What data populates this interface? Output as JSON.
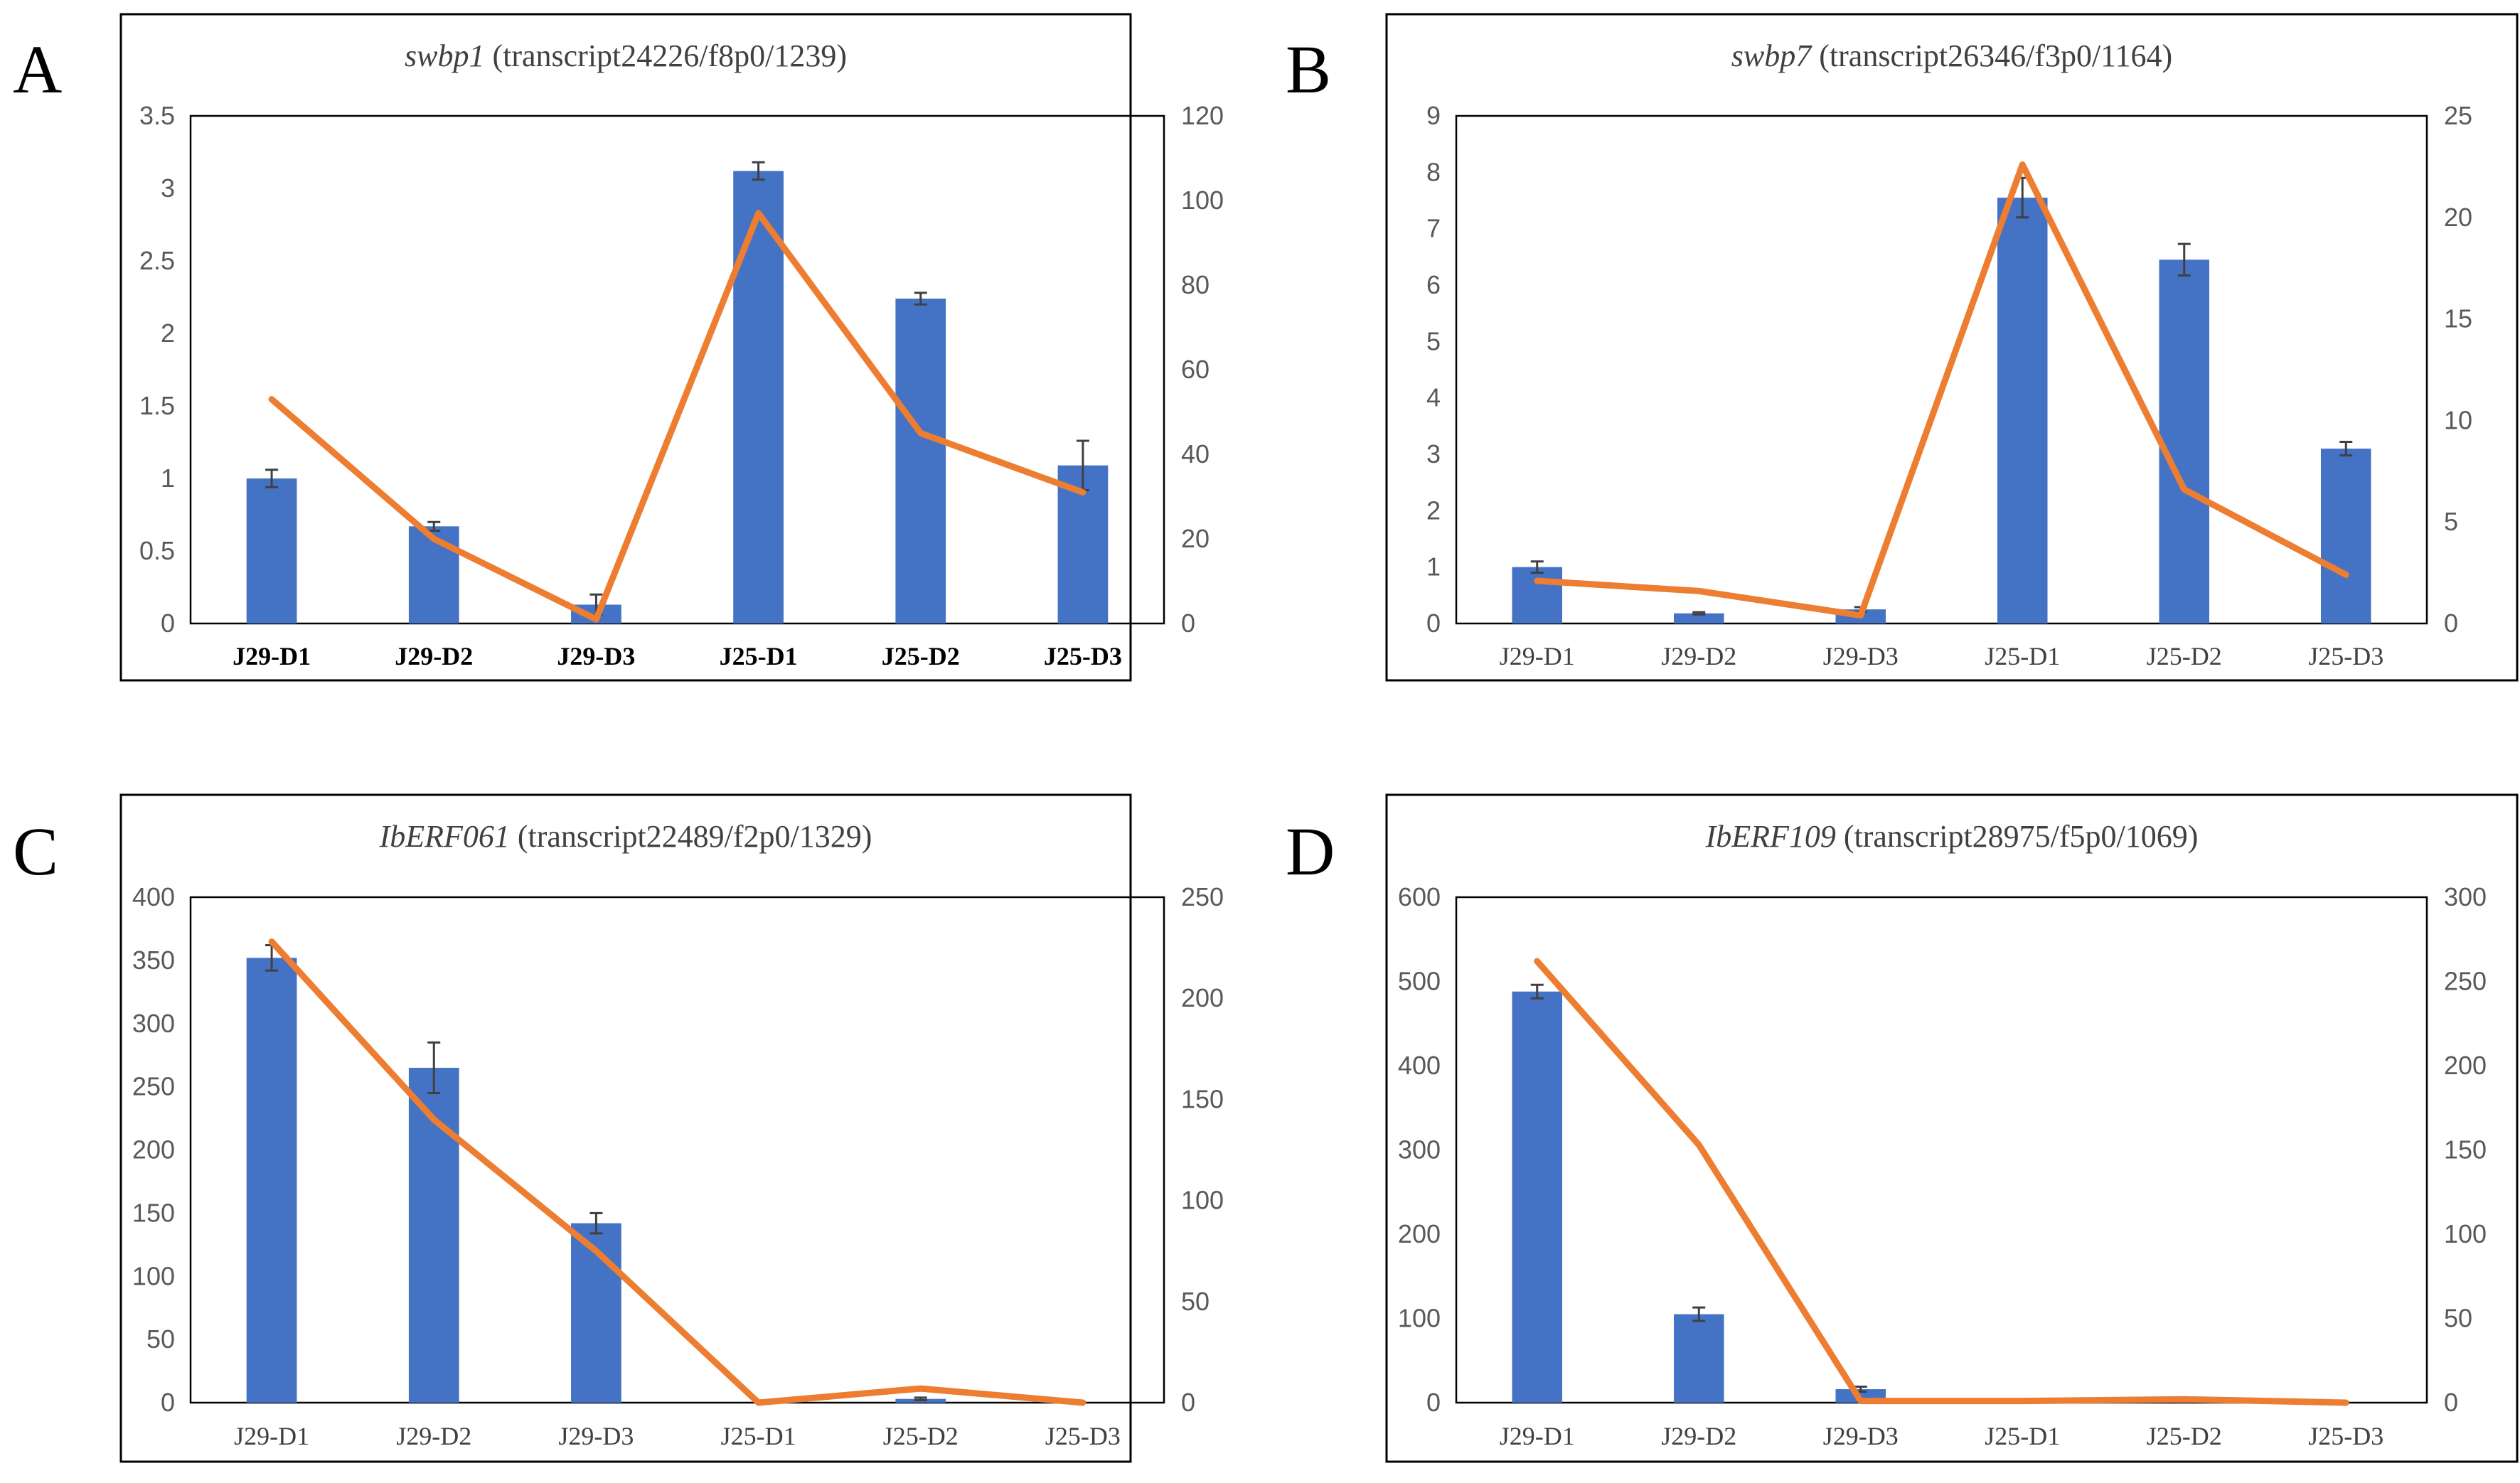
{
  "colors": {
    "bar": "#4472C4",
    "line": "#ED7D31",
    "frame": "#000000",
    "text": "#404040",
    "tick": "#595959"
  },
  "chart_data": [
    {
      "panel": "A",
      "type": "bar+line",
      "title_gene": "swbp1",
      "title_rest": " (transcript24226/f8p0/1239)",
      "categories": [
        "J29-D1",
        "J29-D2",
        "J29-D3",
        "J25-D1",
        "J25-D2",
        "J25-D3"
      ],
      "category_bold": true,
      "ylim_left": [
        0,
        3.5
      ],
      "yticks_left": [
        0,
        0.5,
        1,
        1.5,
        2,
        2.5,
        3,
        3.5
      ],
      "ylim_right": [
        0,
        120
      ],
      "yticks_right": [
        0,
        20,
        40,
        60,
        80,
        100,
        120
      ],
      "series": [
        {
          "name": "bar",
          "axis": "left",
          "values": [
            1.0,
            0.67,
            0.13,
            3.12,
            2.24,
            1.09
          ],
          "errors": [
            0.06,
            0.03,
            0.07,
            0.06,
            0.04,
            0.17
          ]
        },
        {
          "name": "line",
          "axis": "right",
          "values": [
            53,
            20,
            1,
            97,
            45,
            31
          ]
        }
      ]
    },
    {
      "panel": "B",
      "type": "bar+line",
      "title_gene": "swbp7",
      "title_rest": " (transcript26346/f3p0/1164)",
      "categories": [
        "J29-D1",
        "J29-D2",
        "J29-D3",
        "J25-D1",
        "J25-D2",
        "J25-D3"
      ],
      "category_bold": false,
      "ylim_left": [
        0,
        9
      ],
      "yticks_left": [
        0,
        1,
        2,
        3,
        4,
        5,
        6,
        7,
        8,
        9
      ],
      "ylim_right": [
        0,
        25
      ],
      "yticks_right": [
        0,
        5,
        10,
        15,
        20,
        25
      ],
      "series": [
        {
          "name": "bar",
          "axis": "left",
          "values": [
            1.0,
            0.18,
            0.25,
            7.55,
            6.45,
            3.1
          ],
          "errors": [
            0.1,
            0.02,
            0.04,
            0.35,
            0.28,
            0.12
          ]
        },
        {
          "name": "line",
          "axis": "right",
          "values": [
            2.1,
            1.6,
            0.4,
            22.6,
            6.6,
            2.4
          ]
        }
      ]
    },
    {
      "panel": "C",
      "type": "bar+line",
      "title_gene": "IbERF061",
      "title_rest": " (transcript22489/f2p0/1329)",
      "categories": [
        "J29-D1",
        "J29-D2",
        "J29-D3",
        "J25-D1",
        "J25-D2",
        "J25-D3"
      ],
      "category_bold": false,
      "ylim_left": [
        0,
        400
      ],
      "yticks_left": [
        0,
        50,
        100,
        150,
        200,
        250,
        300,
        350,
        400
      ],
      "ylim_right": [
        0,
        250
      ],
      "yticks_right": [
        0,
        50,
        100,
        150,
        200,
        250
      ],
      "series": [
        {
          "name": "bar",
          "axis": "left",
          "values": [
            352,
            265,
            142,
            0,
            3,
            0
          ],
          "errors": [
            10,
            20,
            8,
            0,
            1,
            0
          ]
        },
        {
          "name": "line",
          "axis": "right",
          "values": [
            228,
            140,
            75,
            0,
            7,
            0
          ]
        }
      ]
    },
    {
      "panel": "D",
      "type": "bar+line",
      "title_gene": "IbERF109",
      "title_rest": " (transcript28975/f5p0/1069)",
      "categories": [
        "J29-D1",
        "J29-D2",
        "J29-D3",
        "J25-D1",
        "J25-D2",
        "J25-D3"
      ],
      "category_bold": false,
      "ylim_left": [
        0,
        600
      ],
      "yticks_left": [
        0,
        100,
        200,
        300,
        400,
        500,
        600
      ],
      "ylim_right": [
        0,
        300
      ],
      "yticks_right": [
        0,
        50,
        100,
        150,
        200,
        250,
        300
      ],
      "series": [
        {
          "name": "bar",
          "axis": "left",
          "values": [
            488,
            105,
            16,
            0,
            3,
            0
          ],
          "errors": [
            8,
            8,
            3,
            0,
            2,
            0
          ]
        },
        {
          "name": "line",
          "axis": "right",
          "values": [
            262,
            153,
            1,
            1,
            2,
            0
          ]
        }
      ]
    }
  ]
}
